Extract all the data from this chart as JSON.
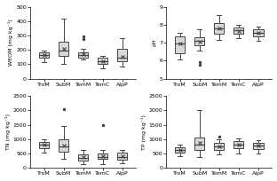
{
  "categories": [
    "TroM",
    "SubM",
    "TemM",
    "TemC",
    "AlpP"
  ],
  "weom": {
    "ylabel": "WEOM (mg kg⁻¹)",
    "ylim": [
      0,
      500
    ],
    "yticks": [
      0,
      100,
      200,
      300,
      400,
      500
    ],
    "boxes": [
      {
        "q1": 148,
        "med": 162,
        "q3": 183,
        "whislo": 118,
        "whishi": 198,
        "mean": 162,
        "fliers": []
      },
      {
        "q1": 158,
        "med": 195,
        "q3": 255,
        "whislo": 105,
        "whishi": 415,
        "mean": 205,
        "fliers": []
      },
      {
        "q1": 148,
        "med": 163,
        "q3": 185,
        "whislo": 133,
        "whishi": 210,
        "mean": 168,
        "fliers": [
          278,
          292
        ]
      },
      {
        "q1": 103,
        "med": 120,
        "q3": 143,
        "whislo": 75,
        "whishi": 160,
        "mean": 122,
        "fliers": []
      },
      {
        "q1": 122,
        "med": 145,
        "q3": 210,
        "whislo": 82,
        "whishi": 283,
        "mean": 152,
        "fliers": []
      }
    ]
  },
  "ph": {
    "ylabel": "pH",
    "ylim": [
      5.0,
      9.0
    ],
    "yticks": [
      5.0,
      6.0,
      7.0,
      8.0,
      9.0
    ],
    "boxes": [
      {
        "q1": 6.4,
        "med": 6.95,
        "q3": 7.35,
        "whislo": 6.05,
        "whishi": 7.55,
        "mean": 6.95,
        "fliers": []
      },
      {
        "q1": 6.85,
        "med": 7.1,
        "q3": 7.3,
        "whislo": 6.55,
        "whishi": 7.75,
        "mean": 7.05,
        "fliers": [
          5.9,
          5.75
        ]
      },
      {
        "q1": 7.5,
        "med": 7.8,
        "q3": 8.1,
        "whislo": 7.15,
        "whishi": 8.55,
        "mean": 7.8,
        "fliers": []
      },
      {
        "q1": 7.5,
        "med": 7.7,
        "q3": 7.85,
        "whislo": 7.25,
        "whishi": 8.0,
        "mean": 7.65,
        "fliers": []
      },
      {
        "q1": 7.35,
        "med": 7.55,
        "q3": 7.75,
        "whislo": 7.1,
        "whishi": 7.9,
        "mean": 7.55,
        "fliers": []
      }
    ]
  },
  "tn": {
    "ylabel": "TN (mg kg⁻¹)",
    "ylim": [
      0,
      2500
    ],
    "yticks": [
      0,
      500,
      1000,
      1500,
      2000,
      2500
    ],
    "boxes": [
      {
        "q1": 680,
        "med": 800,
        "q3": 910,
        "whislo": 520,
        "whishi": 1000,
        "mean": 810,
        "fliers": []
      },
      {
        "q1": 570,
        "med": 740,
        "q3": 1010,
        "whislo": 320,
        "whishi": 1450,
        "mean": 780,
        "fliers": [
          2050
        ]
      },
      {
        "q1": 270,
        "med": 360,
        "q3": 470,
        "whislo": 130,
        "whishi": 610,
        "mean": 370,
        "fliers": []
      },
      {
        "q1": 310,
        "med": 390,
        "q3": 490,
        "whislo": 130,
        "whishi": 640,
        "mean": 400,
        "fliers": [
          1500
        ]
      },
      {
        "q1": 300,
        "med": 390,
        "q3": 530,
        "whislo": 150,
        "whishi": 630,
        "mean": 400,
        "fliers": []
      }
    ]
  },
  "tp": {
    "ylabel": "TP (mg kg⁻¹)",
    "ylim": [
      0,
      2500
    ],
    "yticks": [
      0,
      500,
      1000,
      1500,
      2000,
      2500
    ],
    "boxes": [
      {
        "q1": 530,
        "med": 640,
        "q3": 730,
        "whislo": 420,
        "whishi": 820,
        "mean": 640,
        "fliers": []
      },
      {
        "q1": 620,
        "med": 820,
        "q3": 1070,
        "whislo": 380,
        "whishi": 2010,
        "mean": 880,
        "fliers": []
      },
      {
        "q1": 620,
        "med": 740,
        "q3": 860,
        "whislo": 480,
        "whishi": 980,
        "mean": 750,
        "fliers": [
          1080
        ]
      },
      {
        "q1": 680,
        "med": 800,
        "q3": 920,
        "whislo": 510,
        "whishi": 1030,
        "mean": 810,
        "fliers": []
      },
      {
        "q1": 650,
        "med": 780,
        "q3": 870,
        "whislo": 500,
        "whishi": 960,
        "mean": 780,
        "fliers": []
      }
    ]
  },
  "box_facecolor": "#d8d8d8",
  "box_edgecolor": "#444444",
  "mean_marker": "x",
  "mean_color": "#444444",
  "flier_color": "#444444"
}
